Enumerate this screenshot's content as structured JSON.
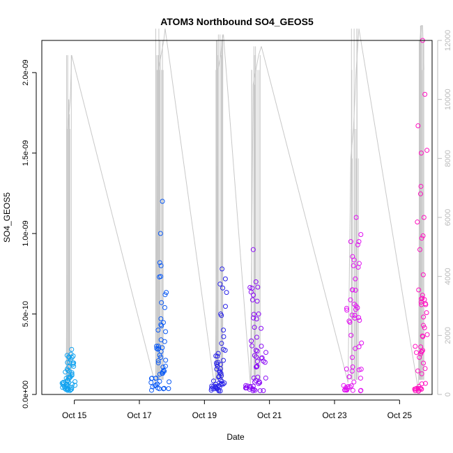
{
  "chart_data": {
    "type": "scatter",
    "title": "ATOM3 Northbound SO4_GEOS5",
    "xlabel": "Date",
    "ylabel": "SO4_GEOS5",
    "y_ticks": [
      "0.0e+00",
      "5.0e-10",
      "1.0e-09",
      "1.5e-09",
      "2.0e-09"
    ],
    "y_tick_values": [
      0,
      5e-10,
      1e-09,
      1.5e-09,
      2e-09
    ],
    "x_ticks": [
      "Oct 15",
      "Oct 17",
      "Oct 19",
      "Oct 21",
      "Oct 23",
      "Oct 25"
    ],
    "x_tick_values": [
      "2017-10-15",
      "2017-10-17",
      "2017-10-19",
      "2017-10-21",
      "2017-10-23",
      "2017-10-25"
    ],
    "ylim": [
      0,
      2.2e-09
    ],
    "xlim": [
      "2017-10-14",
      "2017-10-26"
    ],
    "y2_ticks": [
      "0",
      "2000",
      "4000",
      "6000",
      "8000",
      "10000",
      "12000"
    ],
    "y2_tick_values": [
      0,
      2000,
      4000,
      6000,
      8000,
      10000,
      12000
    ],
    "y2lim": [
      0,
      12000
    ],
    "grid": false,
    "series": [
      {
        "flight": "2017-10-14",
        "color": "#12A3F0",
        "points": [
          [
            "2017-10-14 18:00",
            6e-11
          ],
          [
            "2017-10-14 19:12",
            1.5e-10
          ],
          [
            "2017-10-14 20:24",
            2e-10
          ],
          [
            "2017-10-14 21:36",
            2.5e-10
          ],
          [
            "2017-10-14 22:00",
            2.8e-10
          ]
        ],
        "altitude": [
          [
            "2017-10-14 18:00",
            100
          ],
          [
            "2017-10-14 19:00",
            9000
          ],
          [
            "2017-10-14 20:00",
            9500
          ],
          [
            "2017-10-14 21:00",
            10000
          ],
          [
            "2017-10-14 22:00",
            11500
          ]
        ]
      },
      {
        "flight": "2017-10-17",
        "color": "#0A5AF5",
        "points": [
          [
            "2017-10-17 12:00",
            1e-10
          ],
          [
            "2017-10-17 14:00",
            3e-10
          ],
          [
            "2017-10-17 16:00",
            8e-10
          ],
          [
            "2017-10-17 17:00",
            1.2e-09
          ],
          [
            "2017-10-17 19:00",
            6.2e-10
          ]
        ],
        "altitude": [
          [
            "2017-10-17 12:00",
            300
          ],
          [
            "2017-10-17 14:00",
            11000
          ],
          [
            "2017-10-17 16:00",
            11500
          ],
          [
            "2017-10-17 18:00",
            12000
          ],
          [
            "2017-10-17 19:00",
            12400
          ]
        ]
      },
      {
        "flight": "2017-10-19",
        "color": "#2A24E8",
        "points": [
          [
            "2017-10-19 08:00",
            5e-11
          ],
          [
            "2017-10-19 10:00",
            2e-10
          ],
          [
            "2017-10-19 12:00",
            5e-10
          ],
          [
            "2017-10-19 13:00",
            7.8e-10
          ],
          [
            "2017-10-19 14:00",
            4e-10
          ]
        ],
        "altitude": [
          [
            "2017-10-19 08:00",
            100
          ],
          [
            "2017-10-19 10:00",
            11000
          ],
          [
            "2017-10-19 12:00",
            11500
          ],
          [
            "2017-10-19 13:00",
            12000
          ],
          [
            "2017-10-19 14:00",
            12200
          ]
        ]
      },
      {
        "flight": "2017-10-20",
        "color": "#8A0AF5",
        "points": [
          [
            "2017-10-20 10:00",
            5e-11
          ],
          [
            "2017-10-20 12:00",
            9e-10
          ],
          [
            "2017-10-20 14:00",
            7e-10
          ],
          [
            "2017-10-20 16:00",
            5e-10
          ],
          [
            "2017-10-20 18:00",
            3e-10
          ]
        ],
        "altitude": [
          [
            "2017-10-20 10:00",
            300
          ],
          [
            "2017-10-20 12:00",
            10500
          ],
          [
            "2017-10-20 14:00",
            11000
          ],
          [
            "2017-10-20 16:00",
            11500
          ],
          [
            "2017-10-20 18:00",
            11800
          ]
        ]
      },
      {
        "flight": "2017-10-23",
        "color": "#E010F0",
        "points": [
          [
            "2017-10-23 10:00",
            5e-11
          ],
          [
            "2017-10-23 12:00",
            9.5e-10
          ],
          [
            "2017-10-23 14:00",
            8e-10
          ],
          [
            "2017-10-23 16:00",
            1.1e-09
          ],
          [
            "2017-10-23 18:00",
            9.5e-10
          ]
        ],
        "altitude": [
          [
            "2017-10-23 10:00",
            400
          ],
          [
            "2017-10-23 12:00",
            8000
          ],
          [
            "2017-10-23 14:00",
            9000
          ],
          [
            "2017-10-23 16:00",
            11000
          ],
          [
            "2017-10-23 18:00",
            12400
          ]
        ]
      },
      {
        "flight": "2017-10-25",
        "color": "#FF10C0",
        "points": [
          [
            "2017-10-25 14:00",
            2e-11
          ],
          [
            "2017-10-25 15:00",
            9e-10
          ],
          [
            "2017-10-25 16:00",
            1.5e-09
          ],
          [
            "2017-10-25 17:00",
            2.2e-09
          ],
          [
            "2017-10-25 18:00",
            1.1e-09
          ]
        ],
        "altitude": [
          [
            "2017-10-25 14:00",
            100
          ],
          [
            "2017-10-25 15:00",
            12000
          ],
          [
            "2017-10-25 16:00",
            12500
          ],
          [
            "2017-10-25 17:00",
            12500
          ],
          [
            "2017-10-25 18:00",
            11000
          ]
        ]
      }
    ]
  }
}
